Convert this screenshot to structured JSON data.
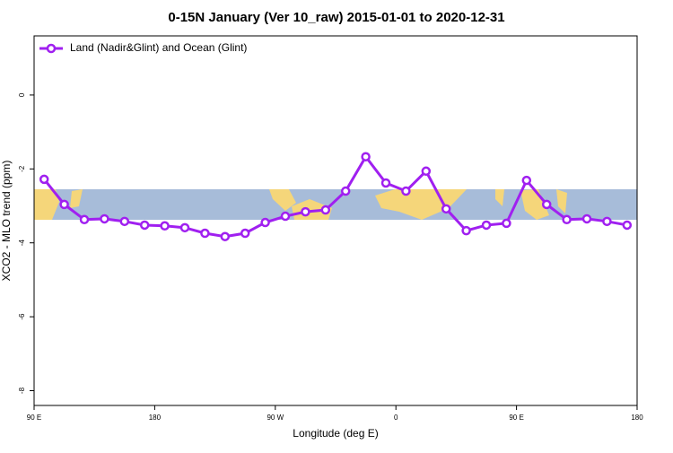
{
  "chart_data": {
    "type": "line",
    "title": "0-15N January (Ver 10_raw)   2015-01-01 to 2020-12-31",
    "x_label": "Longitude (deg E)",
    "y_label": "XCO2 - MLO trend (ppm)",
    "x": [
      97.5,
      112.5,
      127.5,
      142.5,
      157.5,
      172.5,
      187.5,
      202.5,
      217.5,
      232.5,
      247.5,
      262.5,
      277.5,
      292.5,
      307.5,
      322.5,
      337.5,
      352.5,
      367.5,
      382.5,
      397.5,
      412.5,
      427.5,
      442.5,
      457.5,
      472.5,
      487.5,
      502.5,
      517.5,
      532.5
    ],
    "series": [
      {
        "name": "Land (Nadir&Glint) and Ocean (Glint)",
        "color": "#a020f0",
        "values": [
          -2.28,
          -2.96,
          -3.37,
          -3.35,
          -3.42,
          -3.52,
          -3.54,
          -3.59,
          -3.74,
          -3.83,
          -3.74,
          -3.45,
          -3.28,
          -3.16,
          -3.11,
          -2.6,
          -1.67,
          -2.38,
          -2.6,
          -2.06,
          -3.08,
          -3.67,
          -3.52,
          -3.47,
          -2.31,
          -2.96,
          -3.37,
          -3.35,
          -3.42,
          -3.52
        ]
      }
    ],
    "xlim": [
      90,
      540
    ],
    "xticks": [
      {
        "value": 90,
        "label": "90 E"
      },
      {
        "value": 180,
        "label": "180"
      },
      {
        "value": 270,
        "label": "90 W"
      },
      {
        "value": 360,
        "label": "0"
      },
      {
        "value": 450,
        "label": "90 E"
      },
      {
        "value": 540,
        "label": "180"
      }
    ],
    "ylim": [
      -8.4,
      1.6
    ],
    "yticks": [
      0,
      -2,
      -4,
      -6,
      -8
    ],
    "legend_position": "top-left"
  }
}
